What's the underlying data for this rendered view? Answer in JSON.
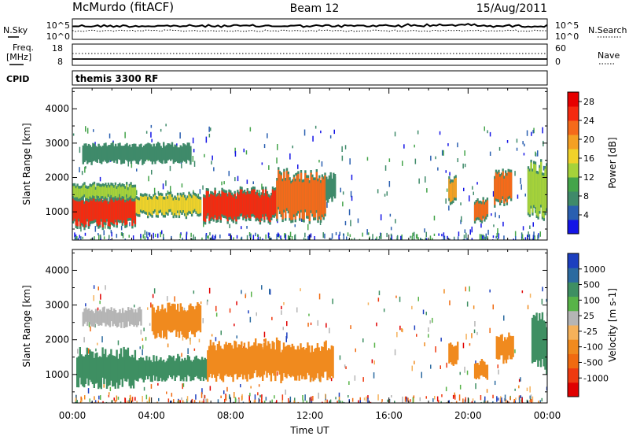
{
  "header": {
    "station": "McMurdo (fitACF)",
    "beam": "Beam 12",
    "date": "15/Aug/2011"
  },
  "status_panel": {
    "nsky_label": "N.Sky",
    "nsky_ticks": [
      "10^5",
      "10^0"
    ],
    "nsearch_label": "N.Search",
    "nsearch_ticks": [
      "10^5",
      "10^0"
    ],
    "freq_label": "Freq.",
    "freq_unit": "[MHz]",
    "freq_ticks": [
      "18",
      "8"
    ],
    "nave_label": "Nave",
    "nave_ticks": [
      "60",
      "0"
    ],
    "cpid_label": "CPID",
    "cpid_value": "themis 3300 RF"
  },
  "x_axis": {
    "label": "Time UT",
    "ticks": [
      "00:00",
      "04:00",
      "08:00",
      "12:00",
      "16:00",
      "20:00",
      "00:00"
    ],
    "range_hours": [
      0,
      24
    ]
  },
  "panels": [
    {
      "name": "power",
      "ylabel": "Slant Range [km]",
      "yticks": [
        "1000",
        "2000",
        "3000",
        "4000"
      ],
      "colorbar_label": "Power [dB]",
      "colorbar_ticks": [
        "4",
        "8",
        "12",
        "16",
        "20",
        "24",
        "28"
      ],
      "colors": [
        "#1414e6",
        "#2a5fb0",
        "#3f8a6a",
        "#44a44a",
        "#a6d23a",
        "#f0d22a",
        "#f5a023",
        "#f56a1a",
        "#f52a10",
        "#e60000"
      ]
    },
    {
      "name": "velocity",
      "ylabel": "Slant Range [km]",
      "yticks": [
        "1000",
        "2000",
        "3000",
        "4000"
      ],
      "colorbar_label": "Velocity [m s-1]",
      "colorbar_ticks": [
        "1000",
        "500",
        "100",
        "25",
        "-25",
        "-100",
        "-500",
        "-1000"
      ],
      "colors": [
        "#1c3fbf",
        "#2b6aa0",
        "#3e8f62",
        "#58b348",
        "#b5b5b5",
        "#f5b15a",
        "#f08a1e",
        "#f06a10",
        "#ee3a10",
        "#e00000"
      ]
    }
  ],
  "chart_data": {
    "type": "heatmap",
    "title": "McMurdo (fitACF)",
    "xlabel": "Time UT",
    "ylabel": "Slant Range [km]",
    "xlim_hours": [
      0,
      24
    ],
    "ylim_km": [
      180,
      4600
    ],
    "series": [
      {
        "name": "Power [dB]",
        "regions": [
          {
            "t0": 0.0,
            "t1": 3.2,
            "r0": 650,
            "r1": 1400,
            "value": 28
          },
          {
            "t0": 0.0,
            "t1": 3.2,
            "r0": 1400,
            "r1": 1750,
            "value": 12
          },
          {
            "t0": 3.2,
            "t1": 6.5,
            "r0": 950,
            "r1": 1450,
            "value": 16
          },
          {
            "t0": 6.6,
            "t1": 10.3,
            "r0": 800,
            "r1": 1550,
            "value": 28
          },
          {
            "t0": 10.3,
            "t1": 12.8,
            "r0": 900,
            "r1": 2050,
            "value": 24
          },
          {
            "t0": 12.8,
            "t1": 13.3,
            "r0": 1400,
            "r1": 2000,
            "value": 8
          },
          {
            "t0": 0.5,
            "t1": 6.0,
            "r0": 2500,
            "r1": 2900,
            "value": 8
          },
          {
            "t0": 19.0,
            "t1": 19.4,
            "r0": 1300,
            "r1": 1900,
            "value": 20
          },
          {
            "t0": 20.3,
            "t1": 21.0,
            "r0": 800,
            "r1": 1300,
            "value": 24
          },
          {
            "t0": 21.3,
            "t1": 22.2,
            "r0": 1300,
            "r1": 2100,
            "value": 24
          },
          {
            "t0": 23.0,
            "t1": 24.0,
            "r0": 1000,
            "r1": 2300,
            "value": 12
          }
        ]
      },
      {
        "name": "Velocity [m s-1]",
        "regions": [
          {
            "t0": 0.2,
            "t1": 3.2,
            "r0": 700,
            "r1": 1650,
            "value": 100
          },
          {
            "t0": 3.2,
            "t1": 6.8,
            "r0": 850,
            "r1": 1500,
            "value": 100
          },
          {
            "t0": 6.8,
            "t1": 10.5,
            "r0": 900,
            "r1": 1900,
            "value": -500
          },
          {
            "t0": 10.5,
            "t1": 13.2,
            "r0": 900,
            "r1": 1850,
            "value": -500
          },
          {
            "t0": 4.0,
            "t1": 6.5,
            "r0": 2100,
            "r1": 2950,
            "value": -500
          },
          {
            "t0": 0.5,
            "t1": 3.5,
            "r0": 2400,
            "r1": 2900,
            "value": 25
          },
          {
            "t0": 19.0,
            "t1": 19.5,
            "r0": 1300,
            "r1": 1900,
            "value": -500
          },
          {
            "t0": 20.3,
            "t1": 21.0,
            "r0": 900,
            "r1": 1400,
            "value": -500
          },
          {
            "t0": 21.4,
            "t1": 22.3,
            "r0": 1400,
            "r1": 2100,
            "value": -500
          },
          {
            "t0": 23.2,
            "t1": 24.0,
            "r0": 1200,
            "r1": 2600,
            "value": 100
          }
        ]
      }
    ]
  }
}
